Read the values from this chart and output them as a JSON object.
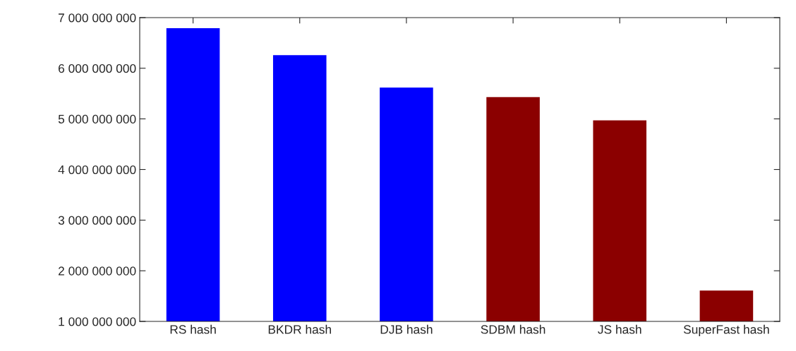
{
  "chart_data": {
    "type": "bar",
    "categories": [
      "RS hash",
      "BKDR hash",
      "DJB hash",
      "SDBM hash",
      "JS hash",
      "SuperFast hash"
    ],
    "values": [
      6790000000,
      6260000000,
      5620000000,
      5430000000,
      4970000000,
      1610000000
    ],
    "colors": [
      "#0000ff",
      "#0000ff",
      "#0000ff",
      "#8b0000",
      "#8b0000",
      "#8b0000"
    ],
    "ylim": [
      1000000000,
      7000000000
    ],
    "yticks": [
      {
        "value": 1000000000,
        "label": "1 000 000 000"
      },
      {
        "value": 2000000000,
        "label": "2 000 000 000"
      },
      {
        "value": 3000000000,
        "label": "3 000 000 000"
      },
      {
        "value": 4000000000,
        "label": "4 000 000 000"
      },
      {
        "value": 5000000000,
        "label": "5 000 000 000"
      },
      {
        "value": 6000000000,
        "label": "6 000 000 000"
      },
      {
        "value": 7000000000,
        "label": "7 000 000 000"
      }
    ],
    "grid": false,
    "legend": false
  }
}
